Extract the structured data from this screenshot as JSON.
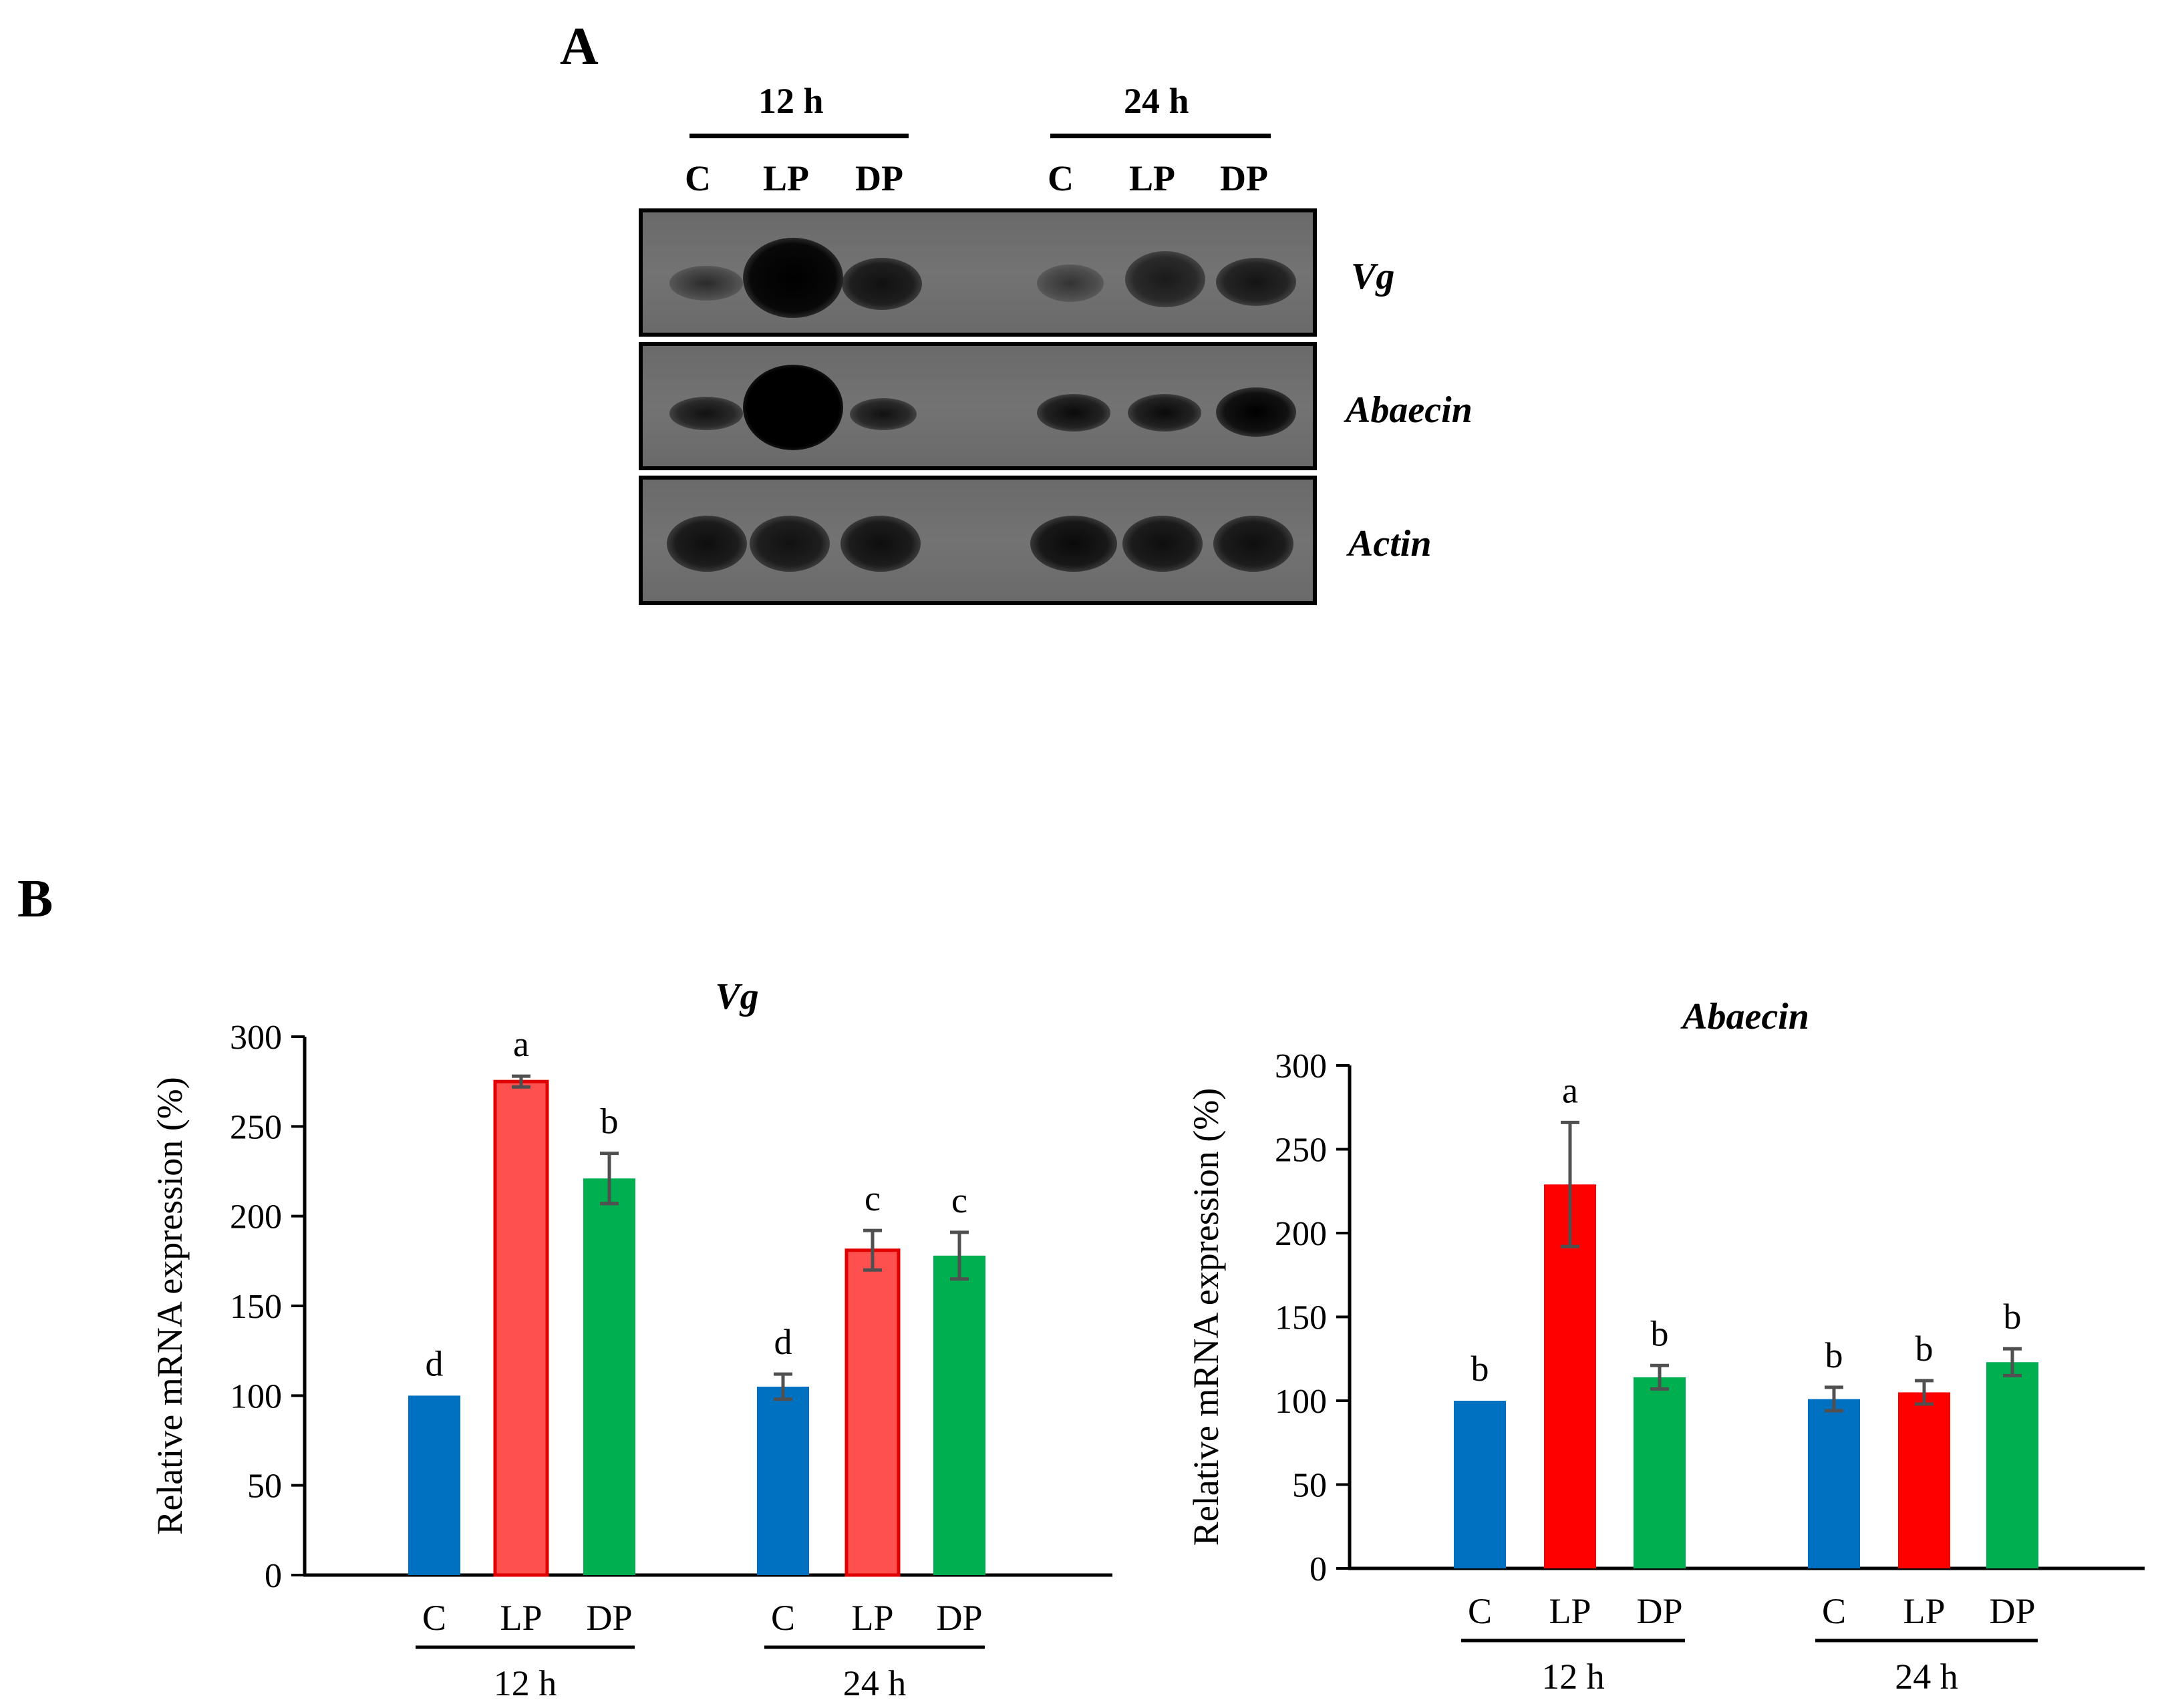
{
  "panel_a": {
    "letter": "A",
    "time_groups": [
      {
        "label": "12 h",
        "lanes": [
          "C",
          "LP",
          "DP"
        ]
      },
      {
        "label": "24 h",
        "lanes": [
          "C",
          "LP",
          "DP"
        ]
      }
    ],
    "genes": [
      "Vg",
      "Abaecin",
      "Actin"
    ]
  },
  "panel_b": {
    "letter": "B"
  },
  "colors": {
    "C": "#0070c0",
    "LP_vg": "#ff5050",
    "LP_vg_edge": "#e00000",
    "LP_ab": "#ff0000",
    "DP": "#00b050",
    "error": "#505050"
  },
  "chart_data": [
    {
      "type": "bar",
      "title": "Vg",
      "xlabel": "",
      "ylabel": "Relative mRNA expression (%)",
      "ylim": [
        0,
        300
      ],
      "yticks": [
        0,
        50,
        100,
        150,
        200,
        250,
        300
      ],
      "groups": [
        "12 h",
        "24 h"
      ],
      "categories": [
        "C",
        "LP",
        "DP"
      ],
      "series": [
        {
          "values": [
            100,
            275,
            221
          ],
          "errors": [
            0,
            3,
            14
          ],
          "letters": [
            "d",
            "a",
            "b"
          ]
        },
        {
          "values": [
            105,
            181,
            178
          ],
          "errors": [
            7,
            11,
            13
          ],
          "letters": [
            "d",
            "c",
            "c"
          ]
        }
      ],
      "grid": false
    },
    {
      "type": "bar",
      "title": "Abaecin",
      "xlabel": "",
      "ylabel": "Relative mRNA expression (%)",
      "ylim": [
        0,
        300
      ],
      "yticks": [
        0,
        50,
        100,
        150,
        200,
        250,
        300
      ],
      "groups": [
        "12 h",
        "24 h"
      ],
      "categories": [
        "C",
        "LP",
        "DP"
      ],
      "series": [
        {
          "values": [
            100,
            229,
            114
          ],
          "errors": [
            0,
            37,
            7
          ],
          "letters": [
            "b",
            "a",
            "b"
          ]
        },
        {
          "values": [
            101,
            105,
            123
          ],
          "errors": [
            7,
            7,
            8
          ],
          "letters": [
            "b",
            "b",
            "b"
          ]
        }
      ],
      "grid": false
    }
  ]
}
